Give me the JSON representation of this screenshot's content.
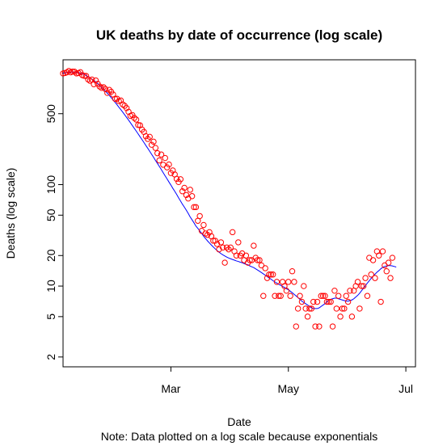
{
  "chart_data": {
    "type": "scatter",
    "title": "UK deaths by date of occurrence (log scale)",
    "xlabel": "Date",
    "ylabel": "Deaths (log scale)",
    "note": "Note: Data plotted on a log scale because exponentials",
    "y_scale": "log",
    "ylim": [
      1.6,
      1700
    ],
    "xlim": [
      "2021-01-04",
      "2021-07-06"
    ],
    "x_ticks": [
      {
        "date": "2021-03-01",
        "label": "Mar"
      },
      {
        "date": "2021-05-01",
        "label": "May"
      },
      {
        "date": "2021-07-01",
        "label": "Jul"
      }
    ],
    "y_ticks": [
      {
        "value": 2,
        "label": "2"
      },
      {
        "value": 5,
        "label": "5"
      },
      {
        "value": 10,
        "label": "10"
      },
      {
        "value": 20,
        "label": "20"
      },
      {
        "value": 50,
        "label": "50"
      },
      {
        "value": 100,
        "label": "100"
      },
      {
        "value": 500,
        "label": "500"
      }
    ],
    "colors": {
      "points": "#ff0000",
      "trend": "#0000ff",
      "axis": "#000000"
    },
    "series": [
      {
        "type": "scatter",
        "x_start": "2021-01-04",
        "x_step_days": 1,
        "values": [
          1247,
          1260,
          1279,
          1320,
          1278,
          1301,
          1297,
          1248,
          1258,
          1283,
          1200,
          1181,
          1178,
          1090,
          1055,
          1085,
          976,
          1064,
          987,
          926,
          898,
          913,
          875,
          801,
          859,
          823,
          773,
          701,
          703,
          666,
          675,
          617,
          598,
          568,
          523,
          476,
          485,
          454,
          438,
          387,
          384,
          349,
          331,
          300,
          282,
          296,
          247,
          265,
          230,
          204,
          173,
          198,
          157,
          183,
          148,
          158,
          130,
          138,
          126,
          114,
          106,
          113,
          86,
          93,
          79,
          73,
          89,
          77,
          60,
          60,
          44,
          49,
          35,
          40,
          33,
          32,
          34,
          31,
          28,
          28,
          26,
          23,
          27,
          24,
          17,
          24,
          23,
          24,
          34,
          22,
          20,
          27,
          20,
          21,
          18,
          20,
          17,
          18,
          18,
          25,
          19,
          18,
          18,
          16,
          8,
          15,
          12,
          13,
          13,
          13,
          8,
          11,
          8,
          8,
          11,
          10,
          9,
          11,
          8,
          14,
          11,
          4,
          6,
          8,
          7,
          10,
          6,
          5,
          6,
          6,
          7,
          4,
          7,
          4,
          8,
          8,
          8,
          7,
          7,
          7,
          4,
          9,
          6,
          8,
          5,
          6,
          6,
          8,
          7,
          9,
          5,
          9,
          10,
          11,
          6,
          10,
          10,
          12,
          8,
          19,
          13,
          18,
          12,
          22,
          20,
          7,
          22,
          16,
          14,
          17,
          12,
          19
        ]
      },
      {
        "type": "line",
        "name": "",
        "x_start": "2021-01-04",
        "x_step_days": 1,
        "values": [
          1250,
          1262,
          1273,
          1282,
          1285,
          1286,
          1285,
          1280,
          1270,
          1256,
          1238,
          1216,
          1190,
          1161,
          1130,
          1097,
          1062,
          1026,
          989,
          951,
          912,
          873,
          834,
          796,
          758,
          720,
          684,
          648,
          614,
          580,
          548,
          518,
          488,
          460,
          433,
          407,
          382,
          359,
          337,
          316,
          296,
          278,
          260,
          243,
          228,
          213,
          199,
          186,
          173,
          162,
          151,
          141,
          131,
          122,
          114,
          106,
          99,
          92,
          86,
          80,
          74,
          69,
          64,
          60,
          56,
          52,
          48,
          45,
          42,
          39,
          37,
          35,
          33,
          31,
          29.4,
          27.9,
          26.6,
          25.4,
          24.3,
          23.3,
          22.4,
          21.6,
          20.9,
          20.3,
          19.8,
          19.3,
          18.9,
          18.6,
          18.3,
          18,
          17.7,
          17.5,
          17.2,
          17,
          16.7,
          16.4,
          16.2,
          15.8,
          15.5,
          15.2,
          14.8,
          14.4,
          14,
          13.6,
          13.2,
          12.8,
          12.4,
          12,
          11.7,
          11.3,
          11,
          10.7,
          10.4,
          10.2,
          9.9,
          9.7,
          9.4,
          9.2,
          8.9,
          8.6,
          8.3,
          8,
          7.7,
          7.4,
          7.1,
          6.9,
          6.7,
          6.5,
          6.3,
          6.1,
          6,
          6,
          6,
          6.1,
          6.3,
          6.5,
          6.7,
          7,
          7.2,
          7.4,
          7.5,
          7.6,
          7.6,
          7.5,
          7.4,
          7.3,
          7.2,
          7.1,
          7.1,
          7.2,
          7.3,
          7.5,
          7.8,
          8.1,
          8.5,
          9,
          9.5,
          10.1,
          10.7,
          11.3,
          11.9,
          12.5,
          13.1,
          13.7,
          14.2,
          14.8,
          15.3,
          15.6,
          15.8,
          15.9,
          15.9,
          15.8,
          15.6,
          15.4
        ]
      }
    ]
  }
}
